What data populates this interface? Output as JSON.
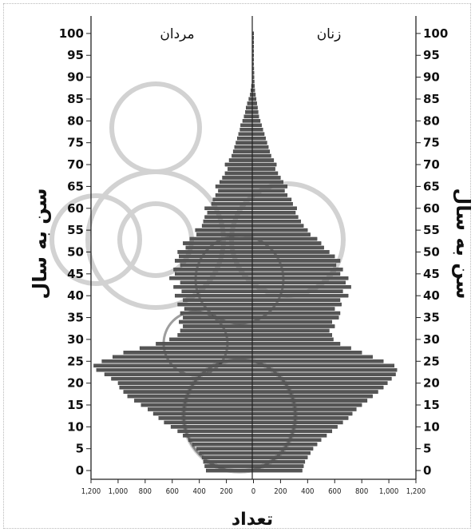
{
  "chart_data": {
    "type": "bar",
    "orientation": "horizontal-population-pyramid",
    "labels": {
      "left_header": "مردان",
      "right_header": "زنان",
      "y_label_left": "سن به سال",
      "y_label_right": "سن به سال",
      "x_label": "تعداد"
    },
    "y_ticks": [
      "0",
      "5",
      "10",
      "15",
      "20",
      "25",
      "30",
      "35",
      "40",
      "45",
      "50",
      "55",
      "60",
      "65",
      "70",
      "75",
      "80",
      "85",
      "90",
      "95",
      "100"
    ],
    "x_ticks": [
      "1,200",
      "1,000",
      "800",
      "600",
      "400",
      "200",
      "0",
      "200",
      "400",
      "600",
      "800",
      "1,000",
      "1,200"
    ],
    "xlim": [
      -1200,
      1200
    ],
    "ylim": [
      -2,
      104
    ],
    "grid": false,
    "colors": {
      "bar": "#555555",
      "bar_edge": "#2a2a2a",
      "axis": "#222222",
      "watermark": "#cfcfcf"
    },
    "ages": [
      0,
      1,
      2,
      3,
      4,
      5,
      6,
      7,
      8,
      9,
      10,
      11,
      12,
      13,
      14,
      15,
      16,
      17,
      18,
      19,
      20,
      21,
      22,
      23,
      24,
      25,
      26,
      27,
      28,
      29,
      30,
      31,
      32,
      33,
      34,
      35,
      36,
      37,
      38,
      39,
      40,
      41,
      42,
      43,
      44,
      45,
      46,
      47,
      48,
      49,
      50,
      51,
      52,
      53,
      54,
      55,
      56,
      57,
      58,
      59,
      60,
      61,
      62,
      63,
      64,
      65,
      66,
      67,
      68,
      69,
      70,
      71,
      72,
      73,
      74,
      75,
      76,
      77,
      78,
      79,
      80,
      81,
      82,
      83,
      84,
      85,
      86,
      87,
      88,
      89,
      90,
      91,
      92,
      93,
      94,
      95,
      96,
      97,
      98,
      99,
      100
    ],
    "series": [
      {
        "name": "مردان",
        "values": [
          350,
          360,
          370,
          380,
          400,
          420,
          450,
          480,
          520,
          560,
          610,
          660,
          700,
          740,
          780,
          830,
          880,
          930,
          960,
          990,
          1000,
          1050,
          1100,
          1160,
          1180,
          1120,
          1040,
          960,
          840,
          720,
          620,
          560,
          540,
          520,
          550,
          520,
          540,
          510,
          560,
          520,
          580,
          530,
          590,
          540,
          620,
          580,
          590,
          540,
          580,
          550,
          560,
          500,
          520,
          470,
          420,
          430,
          380,
          370,
          360,
          340,
          360,
          310,
          300,
          280,
          260,
          280,
          250,
          230,
          210,
          190,
          210,
          180,
          160,
          150,
          140,
          130,
          120,
          110,
          100,
          95,
          80,
          70,
          60,
          55,
          45,
          35,
          25,
          20,
          15,
          10,
          8,
          6,
          5,
          4,
          3,
          2,
          2,
          1,
          1,
          1,
          1
        ]
      },
      {
        "name": "زنان",
        "values": [
          360,
          370,
          380,
          400,
          420,
          440,
          470,
          500,
          540,
          580,
          620,
          660,
          700,
          730,
          760,
          800,
          840,
          880,
          920,
          960,
          990,
          1020,
          1050,
          1060,
          1040,
          960,
          880,
          800,
          720,
          640,
          590,
          580,
          560,
          600,
          580,
          630,
          640,
          600,
          650,
          640,
          700,
          660,
          720,
          680,
          700,
          640,
          660,
          610,
          640,
          600,
          560,
          520,
          500,
          470,
          420,
          400,
          370,
          350,
          330,
          310,
          320,
          290,
          280,
          250,
          230,
          250,
          220,
          200,
          180,
          160,
          170,
          150,
          130,
          120,
          110,
          100,
          90,
          80,
          70,
          60,
          50,
          40,
          35,
          30,
          25,
          20,
          15,
          10,
          8,
          6,
          5,
          4,
          3,
          2,
          2,
          1,
          1,
          1,
          1,
          1,
          1
        ]
      }
    ]
  }
}
